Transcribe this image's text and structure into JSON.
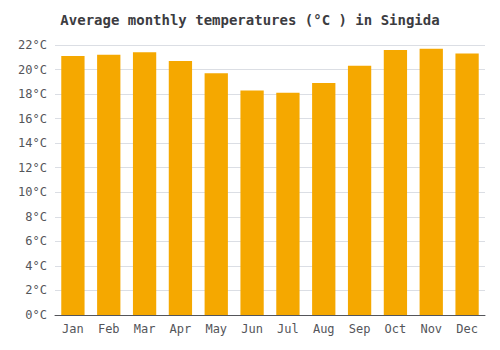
{
  "chart_data": {
    "type": "bar",
    "title": "Average monthly temperatures (°C ) in Singida",
    "categories": [
      "Jan",
      "Feb",
      "Mar",
      "Apr",
      "May",
      "Jun",
      "Jul",
      "Aug",
      "Sep",
      "Oct",
      "Nov",
      "Dec"
    ],
    "values": [
      21.1,
      21.2,
      21.4,
      20.7,
      19.7,
      18.3,
      18.1,
      18.9,
      20.3,
      21.6,
      21.7,
      21.3
    ],
    "color": "#F5A800",
    "ylim": [
      0,
      22
    ],
    "yticks": [
      {
        "value": 0,
        "label": "0°C"
      },
      {
        "value": 2,
        "label": "2°C"
      },
      {
        "value": 4,
        "label": "4°C"
      },
      {
        "value": 6,
        "label": "6°C"
      },
      {
        "value": 8,
        "label": "8°C"
      },
      {
        "value": 10,
        "label": "10°C"
      },
      {
        "value": 12,
        "label": "12°C"
      },
      {
        "value": 14,
        "label": "14°C"
      },
      {
        "value": 16,
        "label": "16°C"
      },
      {
        "value": 18,
        "label": "18°C"
      },
      {
        "value": 20,
        "label": "20°C"
      },
      {
        "value": 22,
        "label": "22°C"
      }
    ],
    "grid": true
  }
}
